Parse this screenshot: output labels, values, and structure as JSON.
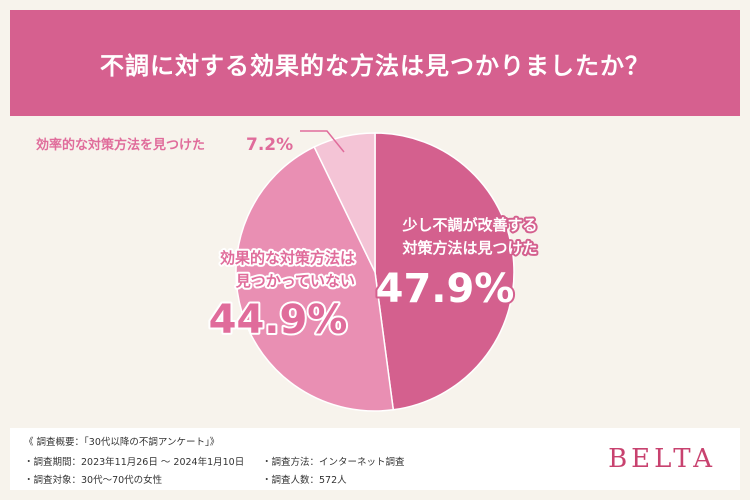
{
  "title": "不調に対する効果的な方法は見つかりましたか？",
  "colors": {
    "accent": "#d6608f",
    "slice_improve": "#d4608e",
    "slice_not_found": "#e98fb3",
    "slice_found": "#f4c4d6",
    "label_dark_pink": "#e06c9b",
    "brand": "#c8426f"
  },
  "chart_data": {
    "type": "pie",
    "slices": [
      {
        "label_lines": [
          "少し不調が改善する",
          "対策方法は見つけた"
        ],
        "value": 47.9,
        "display": "47.9%"
      },
      {
        "label_lines": [
          "効果的な対策方法は",
          "見つかっていない"
        ],
        "value": 44.9,
        "display": "44.9%"
      },
      {
        "label_lines": [
          "効率的な対策方法を見つけた"
        ],
        "value": 7.2,
        "display": "7.2%"
      }
    ]
  },
  "footer": {
    "heading": "《 調査概要：「30代以降の不調アンケート」》",
    "period": "・調査期間：2023年11月26日 ～ 2024年1月10日",
    "target": "・調査対象：30代～70代の女性",
    "method": "・調査方法：インターネット調査",
    "count": "・調査人数：572人"
  },
  "brand": "BELTA"
}
